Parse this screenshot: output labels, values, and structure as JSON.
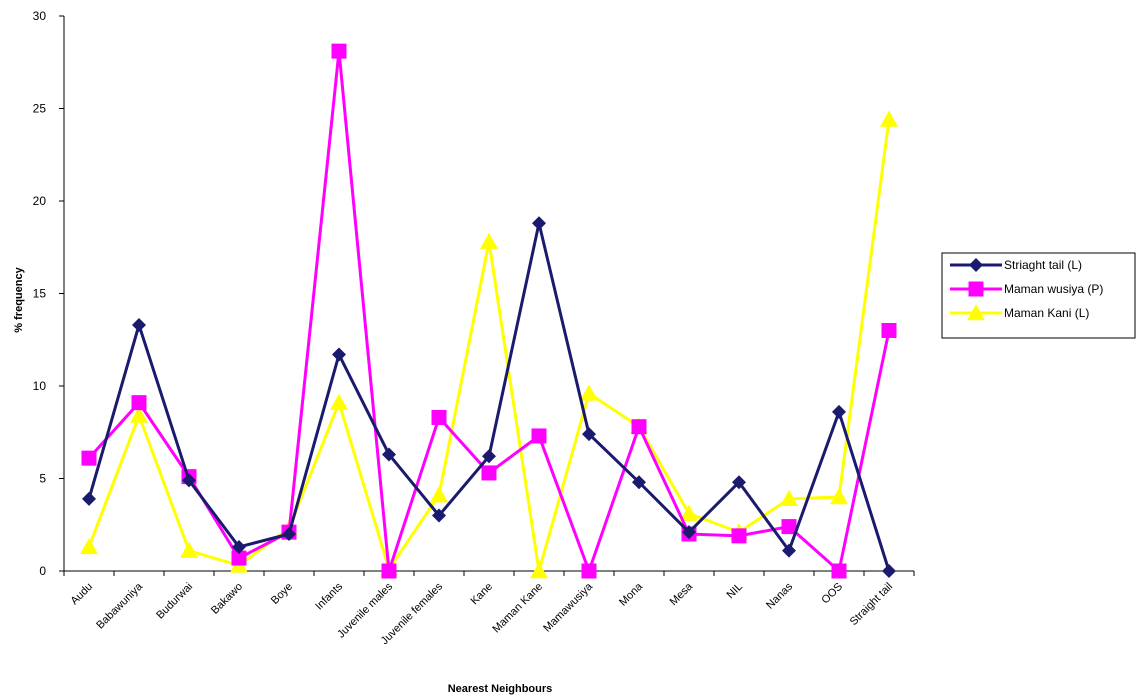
{
  "chart_data": {
    "type": "line",
    "title": "",
    "xlabel": "Nearest Neighbours",
    "ylabel": "% frequency",
    "ylim": [
      0,
      30
    ],
    "yticks": [
      0,
      5,
      10,
      15,
      20,
      25,
      30
    ],
    "grid": false,
    "legend_position": "right",
    "categories": [
      "Audu",
      "Babawuniya",
      "Budurwai",
      "Bakawo",
      "Boye",
      "Infants",
      "Juvenile males",
      "Juvenile females",
      "Kane",
      "Maman Kane",
      "Mamawusiya",
      "Mona",
      "Mesa",
      "NIL",
      "Nanas",
      "OOS",
      "Straight tail"
    ],
    "series": [
      {
        "name": "Striaght tail (L)",
        "color": "#1a1a6e",
        "marker": "diamond",
        "values": [
          3.9,
          13.3,
          4.9,
          1.3,
          2.0,
          11.7,
          6.3,
          3.0,
          6.2,
          18.8,
          7.4,
          4.8,
          2.1,
          4.8,
          1.1,
          8.6,
          0
        ]
      },
      {
        "name": "Maman  wusiya  (P)",
        "color": "#ff00ff",
        "marker": "square",
        "values": [
          6.1,
          9.1,
          5.1,
          0.7,
          2.1,
          28.1,
          0,
          8.3,
          5.3,
          7.3,
          0,
          7.8,
          2.0,
          1.9,
          2.4,
          0,
          13.0
        ]
      },
      {
        "name": "Maman Kani (L)",
        "color": "#ffff00",
        "marker": "triangle",
        "values": [
          1.3,
          8.4,
          1.1,
          0.3,
          2.3,
          9.1,
          0.1,
          4.1,
          17.8,
          0,
          9.6,
          7.8,
          3.1,
          2.1,
          3.9,
          4.0,
          24.4
        ]
      }
    ]
  }
}
